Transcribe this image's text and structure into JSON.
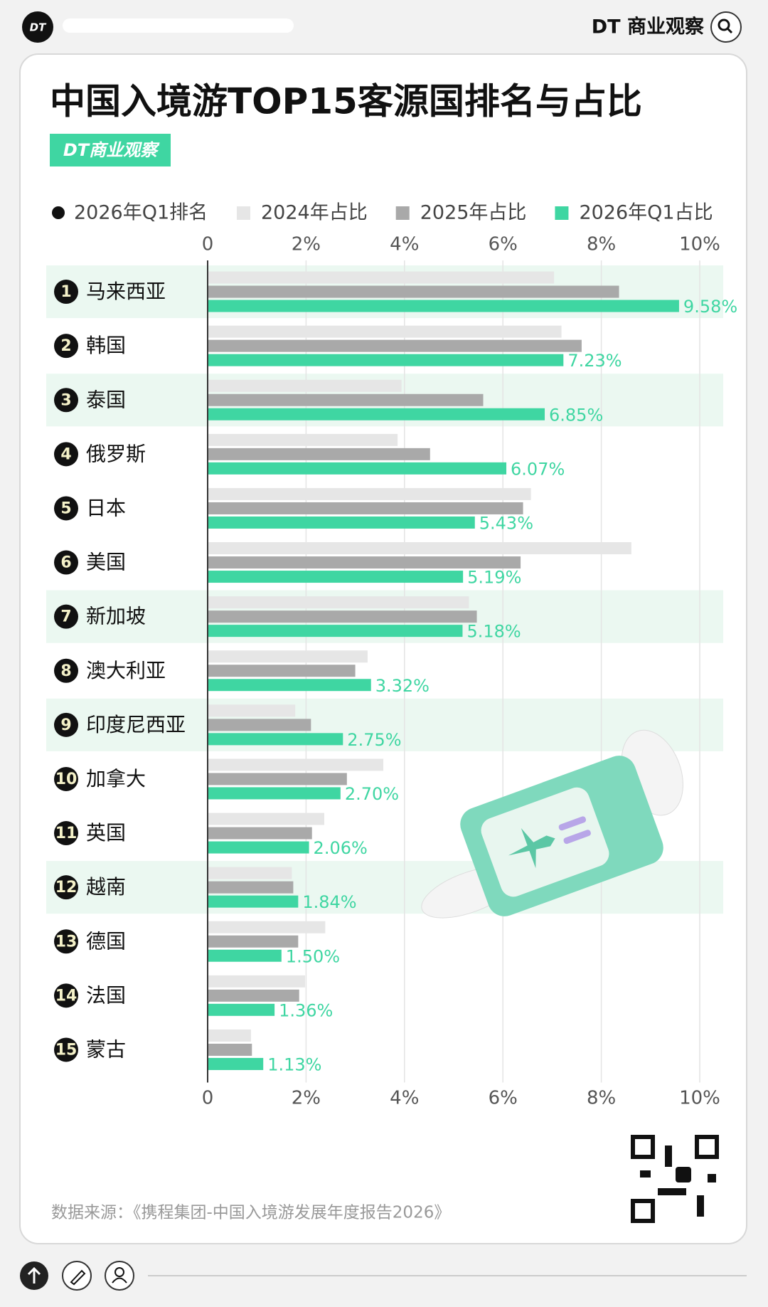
{
  "header": {
    "brand": "DT 商业观察",
    "badge": "DT商业观察"
  },
  "chart_data": {
    "type": "bar",
    "orientation": "horizontal",
    "title": "中国入境游TOP15客源国排名与占比",
    "rank_label": "2026年Q1排名",
    "ranks": [
      1,
      2,
      3,
      4,
      5,
      6,
      7,
      8,
      9,
      10,
      11,
      12,
      13,
      14,
      15
    ],
    "highlighted_ranks": [
      1,
      3,
      7,
      9,
      12
    ],
    "categories": [
      "马来西亚",
      "韩国",
      "泰国",
      "俄罗斯",
      "日本",
      "美国",
      "新加坡",
      "澳大利亚",
      "印度尼西亚",
      "加拿大",
      "英国",
      "越南",
      "德国",
      "法国",
      "蒙古"
    ],
    "series": [
      {
        "name": "2024年占比",
        "color": "#e6e6e6",
        "values": [
          7.04,
          7.19,
          3.94,
          3.86,
          6.57,
          8.61,
          5.31,
          3.25,
          1.78,
          3.57,
          2.37,
          1.71,
          2.39,
          1.98,
          0.88
        ]
      },
      {
        "name": "2025年占比",
        "color": "#a9a9a9",
        "values": [
          8.36,
          7.6,
          5.6,
          4.52,
          6.41,
          6.36,
          5.47,
          3.0,
          2.1,
          2.83,
          2.12,
          1.74,
          1.84,
          1.86,
          0.9
        ]
      },
      {
        "name": "2026年Q1占比",
        "color": "#3fd6a2",
        "values": [
          9.58,
          7.23,
          6.85,
          6.07,
          5.43,
          5.19,
          5.18,
          3.32,
          2.75,
          2.7,
          2.06,
          1.84,
          1.5,
          1.36,
          1.13
        ],
        "value_labels": [
          "9.58%",
          "7.23%",
          "6.85%",
          "6.07%",
          "5.43%",
          "5.19%",
          "5.18%",
          "3.32%",
          "2.75%",
          "2.70%",
          "2.06%",
          "1.84%",
          "1.50%",
          "1.36%",
          "1.13%"
        ]
      }
    ],
    "xlim": [
      0,
      10
    ],
    "xticks": [
      0,
      {
        "value": 2,
        "label": "2%"
      },
      {
        "value": 4,
        "label": "4%"
      },
      {
        "value": 6,
        "label": "6%"
      },
      {
        "value": 8,
        "label": "8%"
      },
      {
        "value": 10,
        "label": "10%"
      }
    ],
    "grid": true
  },
  "footer": {
    "source": "数据来源：《携程集团-中国入境游发展年度报告2026》"
  }
}
